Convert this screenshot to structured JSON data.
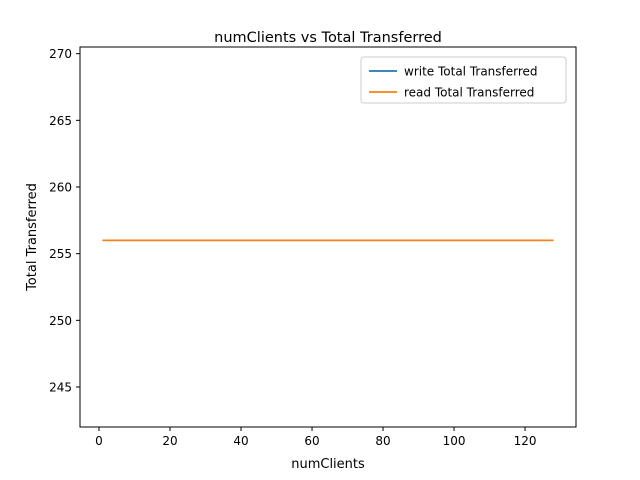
{
  "chart_data": {
    "type": "line",
    "title": "numClients vs Total Transferred",
    "xlabel": "numClients",
    "ylabel": "Total Transferred",
    "xlim": [
      -5.35,
      134.35
    ],
    "ylim": [
      242,
      270.5
    ],
    "xticks": [
      0,
      20,
      40,
      60,
      80,
      100,
      120
    ],
    "yticks": [
      245,
      250,
      255,
      260,
      265,
      270
    ],
    "grid": false,
    "legend_position": "top-right",
    "series": [
      {
        "name": "write Total Transferred",
        "color": "#1f77b4",
        "x": [
          1,
          2,
          4,
          8,
          16,
          32,
          64,
          128
        ],
        "y": [
          256,
          256,
          256,
          256,
          256,
          256,
          256,
          256
        ]
      },
      {
        "name": "read Total Transferred",
        "color": "#ff7f0e",
        "x": [
          1,
          2,
          4,
          8,
          16,
          32,
          64,
          128
        ],
        "y": [
          256,
          256,
          256,
          256,
          256,
          256,
          256,
          256
        ]
      }
    ]
  }
}
